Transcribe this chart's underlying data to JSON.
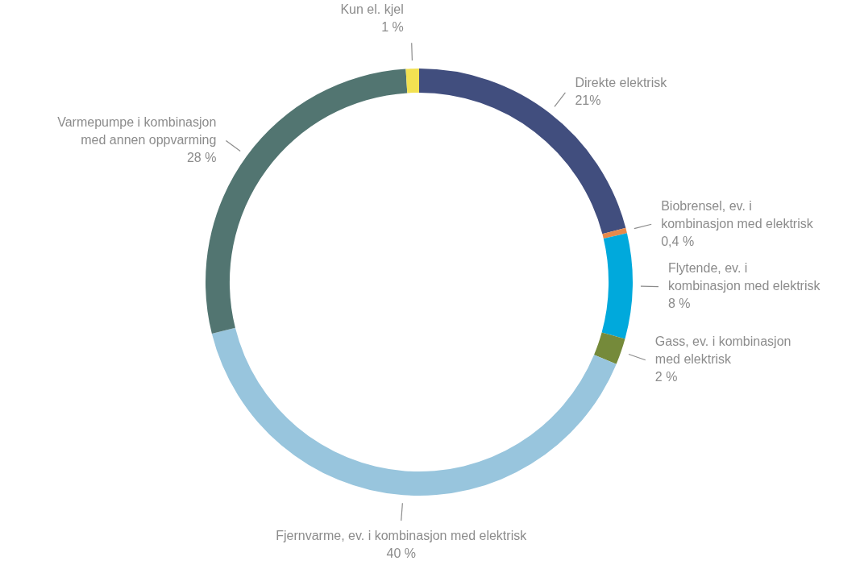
{
  "chart_data": {
    "type": "donut",
    "categories": [
      "Direkte elektrisk",
      "Biobrensel, ev. i\nkombinasjon med elektrisk",
      "Flytende, ev. i\nkombinasjon med elektrisk",
      "Gass, ev. i kombinasjon\nmed elektrisk",
      "Fjernvarme, ev. i kombinasjon med elektrisk",
      "Varmepumpe i kombinasjon\nmed annen oppvarming",
      "Kun el. kjel"
    ],
    "values": [
      21,
      0.4,
      8,
      2,
      40,
      28,
      1
    ],
    "value_labels": [
      "21%",
      "0,4 %",
      "8 %",
      "2 %",
      "40 %",
      "28 %",
      "1 %"
    ],
    "colors": [
      "#414e7e",
      "#e8894a",
      "#00a9dc",
      "#758a3a",
      "#98c5dd",
      "#527571",
      "#f2e152"
    ],
    "legend": false
  }
}
